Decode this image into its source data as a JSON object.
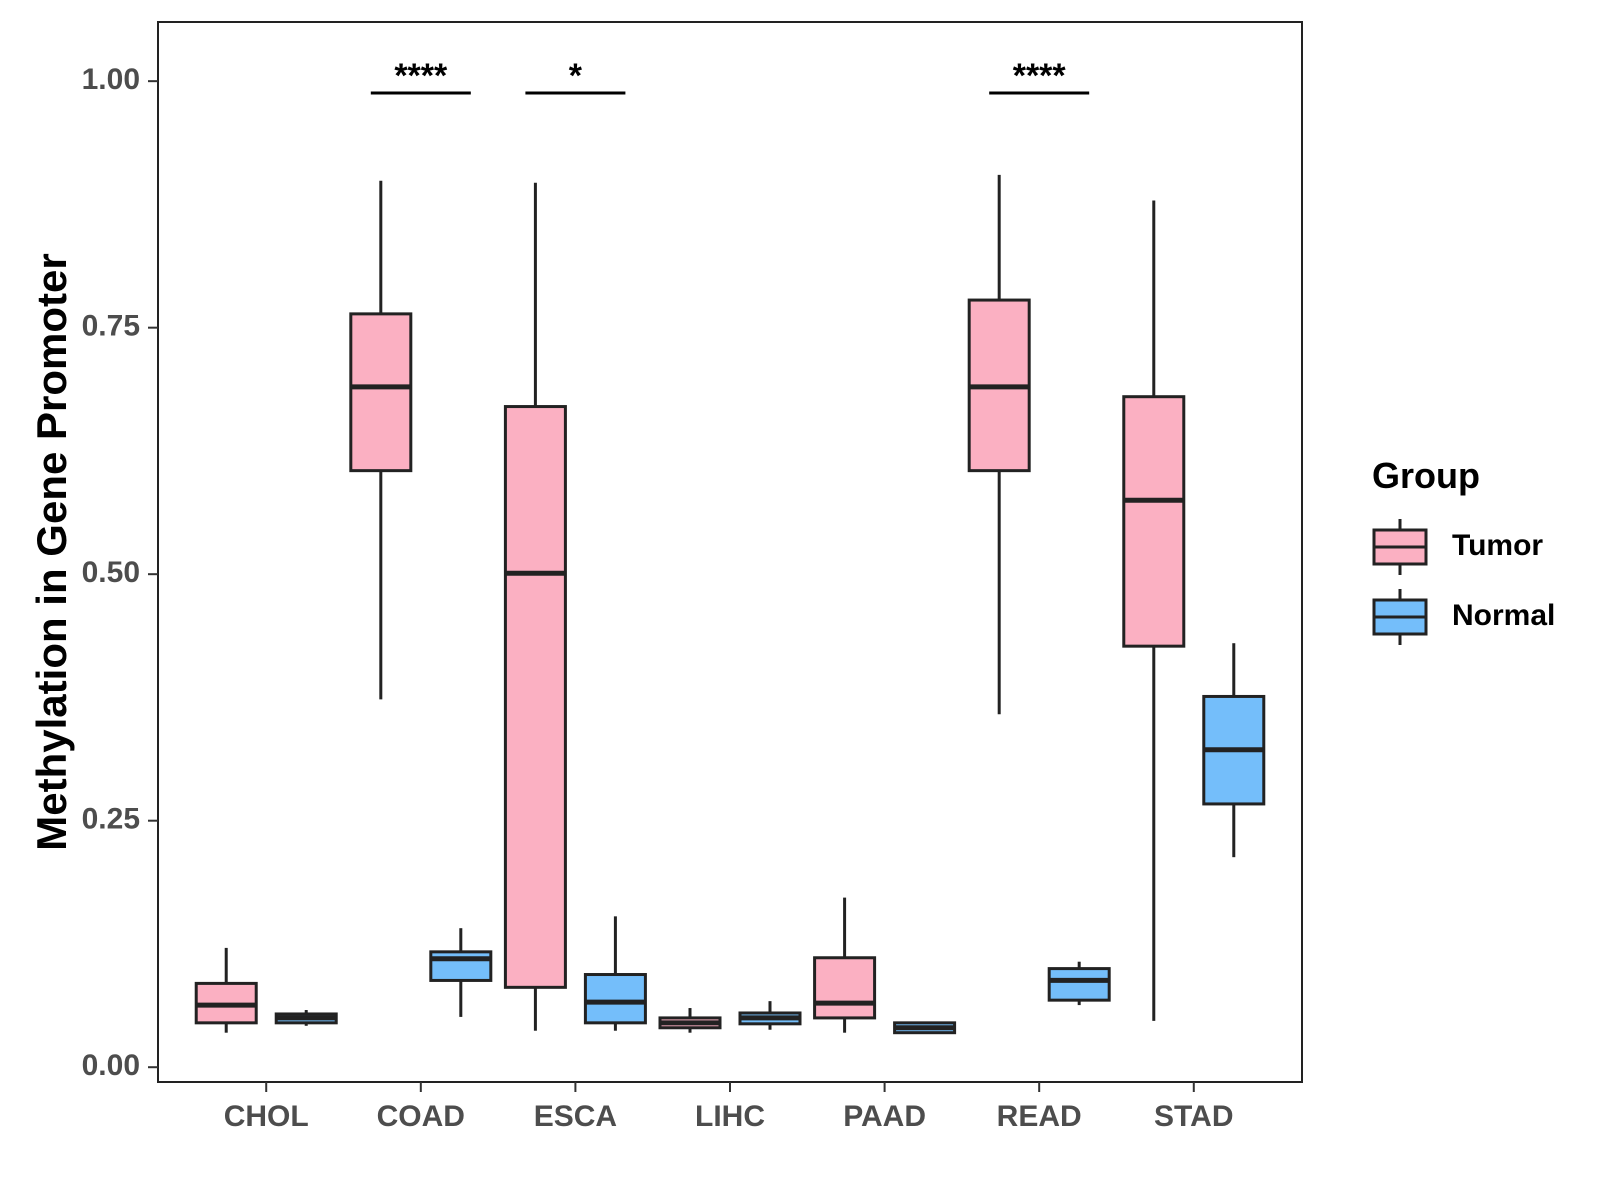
{
  "chart_data": {
    "type": "boxplot",
    "ylabel": "Methylation in Gene Promoter",
    "ylim": [
      -0.015,
      1.06
    ],
    "yticks": [
      0.0,
      0.25,
      0.5,
      0.75,
      1.0
    ],
    "ytick_labels": [
      "0.00",
      "0.25",
      "0.50",
      "0.75",
      "1.00"
    ],
    "categories": [
      "CHOL",
      "COAD",
      "ESCA",
      "LIHC",
      "PAAD",
      "READ",
      "STAD"
    ],
    "legend": {
      "title": "Group",
      "position": "right",
      "entries": [
        "Tumor",
        "Normal"
      ]
    },
    "colors": {
      "Tumor": "#fbb0c2",
      "Normal": "#74befa",
      "outline": "#222222"
    },
    "series": [
      {
        "name": "Tumor",
        "boxes": [
          {
            "min": 0.035,
            "q1": 0.045,
            "median": 0.063,
            "q3": 0.085,
            "max": 0.121
          },
          {
            "min": 0.373,
            "q1": 0.605,
            "median": 0.69,
            "q3": 0.764,
            "max": 0.899
          },
          {
            "min": 0.037,
            "q1": 0.081,
            "median": 0.501,
            "q3": 0.67,
            "max": 0.897
          },
          {
            "min": 0.035,
            "q1": 0.04,
            "median": 0.045,
            "q3": 0.05,
            "max": 0.06
          },
          {
            "min": 0.035,
            "q1": 0.05,
            "median": 0.065,
            "q3": 0.111,
            "max": 0.172
          },
          {
            "min": 0.358,
            "q1": 0.605,
            "median": 0.69,
            "q3": 0.778,
            "max": 0.905
          },
          {
            "min": 0.047,
            "q1": 0.427,
            "median": 0.575,
            "q3": 0.68,
            "max": 0.879
          }
        ]
      },
      {
        "name": "Normal",
        "boxes": [
          {
            "min": 0.042,
            "q1": 0.045,
            "median": 0.05,
            "q3": 0.054,
            "max": 0.058
          },
          {
            "min": 0.051,
            "q1": 0.088,
            "median": 0.11,
            "q3": 0.117,
            "max": 0.141
          },
          {
            "min": 0.037,
            "q1": 0.045,
            "median": 0.066,
            "q3": 0.094,
            "max": 0.153
          },
          {
            "min": 0.038,
            "q1": 0.044,
            "median": 0.05,
            "q3": 0.055,
            "max": 0.067
          },
          {
            "min": 0.035,
            "q1": 0.035,
            "median": 0.04,
            "q3": 0.045,
            "max": 0.045
          },
          {
            "min": 0.063,
            "q1": 0.068,
            "median": 0.088,
            "q3": 0.1,
            "max": 0.107
          },
          {
            "min": 0.213,
            "q1": 0.267,
            "median": 0.322,
            "q3": 0.376,
            "max": 0.43
          }
        ]
      }
    ],
    "significance": [
      {
        "category": "COAD",
        "label": "****"
      },
      {
        "category": "ESCA",
        "label": "*"
      },
      {
        "category": "READ",
        "label": "****"
      }
    ]
  }
}
